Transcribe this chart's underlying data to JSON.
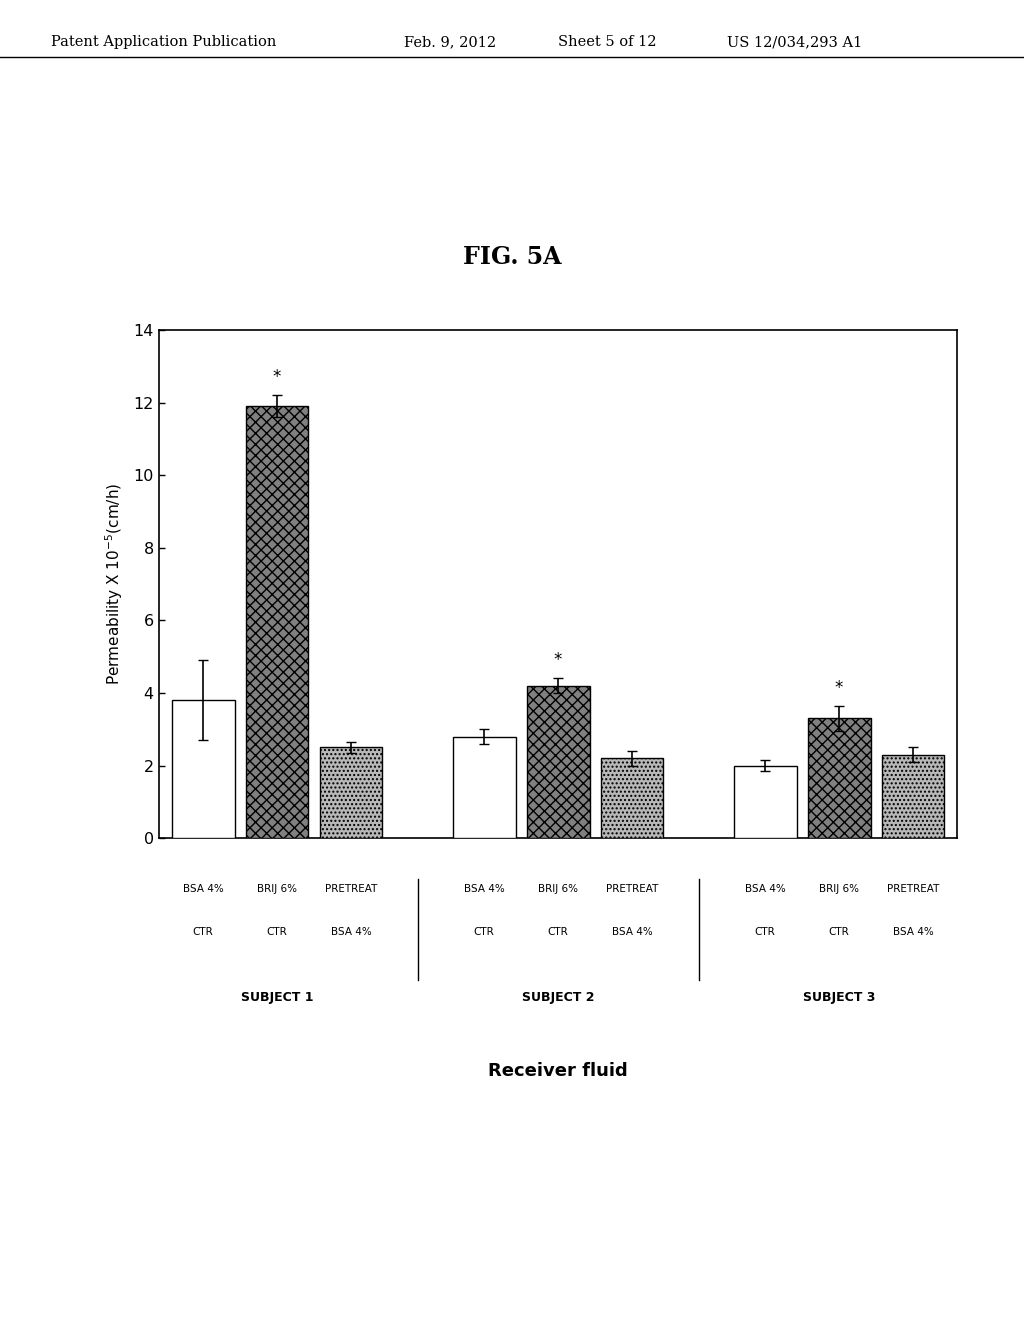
{
  "title": "FIG. 5A",
  "ylabel": "Permeability X 10$^{-5}$(cm/h)",
  "xlabel": "Receiver fluid",
  "groups": [
    "SUBJECT 1",
    "SUBJECT 2",
    "SUBJECT 3"
  ],
  "bar_labels_line1": [
    "BSA 4%",
    "BRIJ 6%",
    "PRETREAT",
    "BSA 4%",
    "BRIJ 6%",
    "PRETREAT",
    "BSA 4%",
    "BRIJ 6%",
    "PRETREAT"
  ],
  "bar_labels_line2": [
    "CTR",
    "CTR",
    "BSA 4%",
    "CTR",
    "CTR",
    "BSA 4%",
    "CTR",
    "CTR",
    "BSA 4%"
  ],
  "values": [
    3.8,
    11.9,
    2.5,
    2.8,
    4.2,
    2.2,
    2.0,
    3.3,
    2.3
  ],
  "errors": [
    1.1,
    0.3,
    0.15,
    0.2,
    0.2,
    0.2,
    0.15,
    0.35,
    0.2
  ],
  "asterisks": [
    false,
    true,
    false,
    false,
    true,
    false,
    false,
    true,
    false
  ],
  "bar_types": [
    0,
    1,
    2,
    0,
    1,
    2,
    0,
    1,
    2
  ],
  "ylim": [
    0,
    14
  ],
  "yticks": [
    0,
    2,
    4,
    6,
    8,
    10,
    12,
    14
  ],
  "figsize": [
    10.24,
    13.2
  ],
  "dpi": 100
}
